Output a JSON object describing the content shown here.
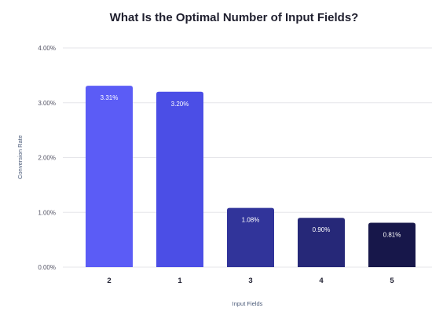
{
  "chart_data": {
    "type": "bar",
    "title": "What Is the Optimal Number of Input Fields?",
    "xlabel": "Input Fields",
    "ylabel": "Conversion Rate",
    "categories": [
      "2",
      "1",
      "3",
      "4",
      "5"
    ],
    "values": [
      3.31,
      3.2,
      1.08,
      0.9,
      0.81
    ],
    "value_labels": [
      "3.31%",
      "3.20%",
      "1.08%",
      "0.90%",
      "0.81%"
    ],
    "yticks": [
      0,
      1,
      2,
      3,
      4
    ],
    "ytick_labels": [
      "0.00%",
      "1.00%",
      "2.00%",
      "3.00%",
      "4.00%"
    ],
    "ylim": [
      0,
      4
    ],
    "grid": true,
    "colors": [
      "#5b5cf6",
      "#4b4ee6",
      "#31349a",
      "#262878",
      "#17174a"
    ]
  }
}
